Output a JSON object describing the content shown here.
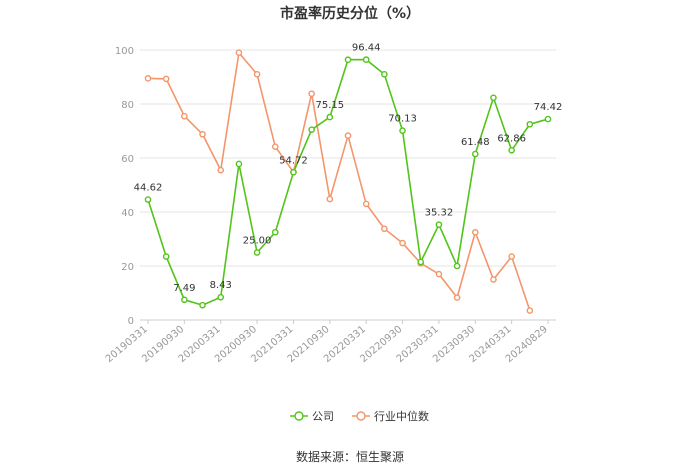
{
  "chart_data": {
    "type": "line",
    "title": "市盈率历史分位（%）",
    "source": "数据来源：恒生聚源",
    "ylim": [
      0,
      100
    ],
    "yticks": [
      0,
      20,
      40,
      60,
      80,
      100
    ],
    "grid": true,
    "legend_position": "bottom",
    "x_tick_labels": [
      "20190331",
      "20190930",
      "20200331",
      "20200930",
      "20210331",
      "20210930",
      "20220331",
      "20220930",
      "20230331",
      "20230930",
      "20240331",
      "20240829"
    ],
    "x": [
      "20190331",
      "20190630",
      "20190930",
      "20191231",
      "20200331",
      "20200630",
      "20200930",
      "20201231",
      "20210331",
      "20210630",
      "20210930",
      "20211231",
      "20220331",
      "20220630",
      "20220930",
      "20221231",
      "20230331",
      "20230630",
      "20230930",
      "20231231",
      "20240331",
      "20240630",
      "20240829"
    ],
    "series": [
      {
        "name": "公司",
        "color": "#52c41a",
        "values": [
          44.62,
          23.5,
          7.49,
          5.5,
          8.43,
          57.8,
          25.0,
          32.5,
          54.72,
          70.5,
          75.15,
          96.4,
          96.44,
          91.0,
          70.13,
          21.5,
          35.32,
          20.0,
          61.48,
          82.3,
          62.86,
          72.5,
          74.42
        ],
        "labels": [
          "44.62",
          "",
          "7.49",
          "",
          "8.43",
          "",
          "25.00",
          "",
          "54.72",
          "",
          "75.15",
          "",
          "96.44",
          "",
          "70.13",
          "",
          "35.32",
          "",
          "61.48",
          "",
          "62.86",
          "",
          "74.42"
        ]
      },
      {
        "name": "行业中位数",
        "color": "#f4956a",
        "values": [
          89.5,
          89.3,
          75.5,
          68.8,
          55.5,
          99.0,
          91.0,
          64.2,
          54.8,
          83.8,
          44.8,
          68.3,
          43.0,
          33.8,
          28.5,
          21.0,
          17.0,
          8.3,
          32.5,
          15.0,
          23.5,
          3.5,
          null
        ]
      }
    ]
  }
}
